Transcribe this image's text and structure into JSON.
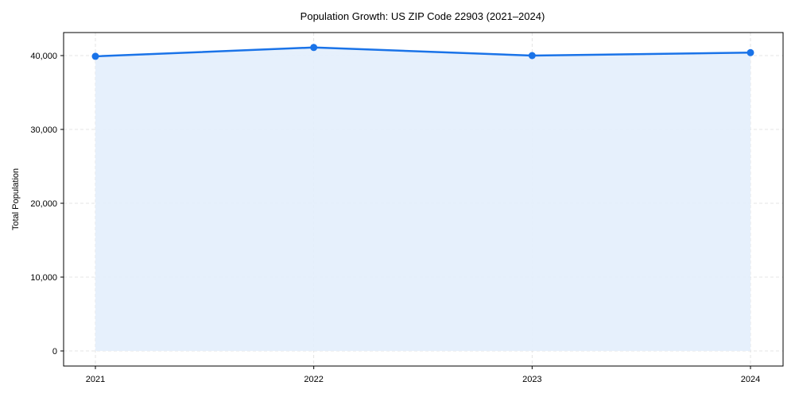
{
  "chart_data": {
    "type": "line",
    "title": "Population Growth: US ZIP Code 22903 (2021–2024)",
    "xlabel": "",
    "ylabel": "Total Population",
    "categories": [
      "2021",
      "2022",
      "2023",
      "2024"
    ],
    "series": [
      {
        "name": "Total Population",
        "values": [
          39900,
          41100,
          40000,
          40400
        ],
        "color": "#1a73e8",
        "fill": "#e3eefc"
      }
    ],
    "yticks": [
      0,
      10000,
      20000,
      30000,
      40000
    ],
    "ytick_labels": [
      "0",
      "10,000",
      "20,000",
      "30,000",
      "40,000"
    ],
    "ylim": [
      -2000,
      43000
    ],
    "grid": true,
    "legend": false
  }
}
